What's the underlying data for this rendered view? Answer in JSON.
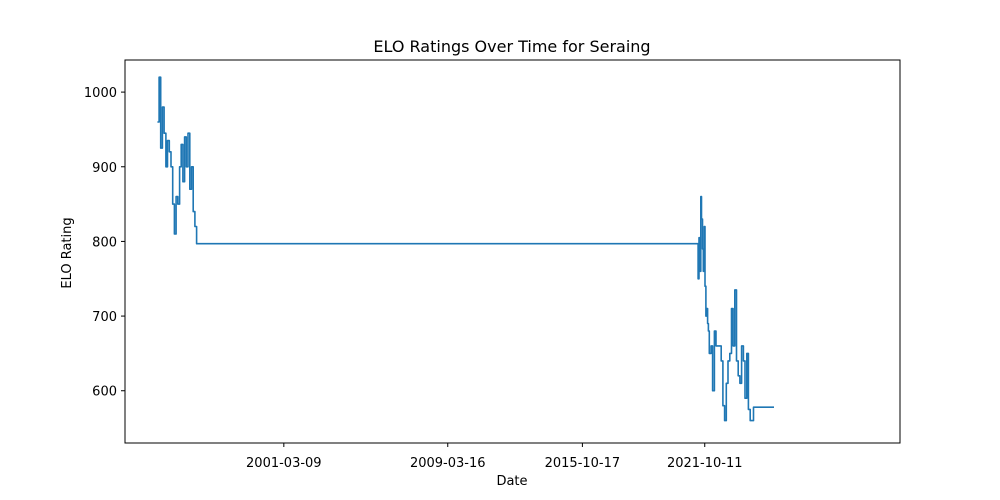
{
  "chart_data": {
    "type": "line",
    "title": "ELO Ratings Over Time for Seraing",
    "xlabel": "Date",
    "ylabel": "ELO Rating",
    "x_tick_labels": [
      "2001-03-09",
      "2009-03-16",
      "2015-10-17",
      "2021-10-11"
    ],
    "x_ticks": [
      "2001-03-09",
      "2009-03-16",
      "2015-10-17",
      "2021-10-11"
    ],
    "y_ticks": [
      600,
      700,
      800,
      900,
      1000
    ],
    "y_tick_labels": [
      "600",
      "700",
      "800",
      "900",
      "1000"
    ],
    "xlim": [
      "1993-06-01",
      "2031-05-01"
    ],
    "ylim": [
      530,
      1043
    ],
    "grid": false,
    "line_color": "#1f77b4",
    "series": [
      {
        "x": [
          "1995-01-01",
          "1995-02-01",
          "1995-03-01",
          "1995-04-01",
          "1995-05-01",
          "1995-06-01",
          "1995-07-01",
          "1995-08-01",
          "1995-09-01",
          "1995-10-01",
          "1995-11-01",
          "1995-12-01",
          "1996-01-01",
          "1996-02-01",
          "1996-03-01",
          "1996-04-01",
          "1996-05-01",
          "1996-06-01",
          "1996-07-01",
          "1996-08-01",
          "1996-09-01",
          "1996-10-01",
          "1996-11-01",
          "1996-12-01",
          "1997-01-01",
          "1997-02-01",
          "1997-03-01",
          "1997-04-01",
          "1997-05-01",
          "2021-06-01",
          "2021-06-15",
          "2021-07-01",
          "2021-07-15",
          "2021-08-01",
          "2021-08-15",
          "2021-09-01",
          "2021-09-15",
          "2021-10-01",
          "2021-10-15",
          "2021-11-01",
          "2021-11-15",
          "2021-12-01",
          "2021-12-15",
          "2022-01-01",
          "2022-02-01",
          "2022-03-01",
          "2022-04-01",
          "2022-05-01",
          "2022-06-01",
          "2022-07-01",
          "2022-08-01",
          "2022-09-01",
          "2022-10-01",
          "2022-11-01",
          "2022-12-01",
          "2023-01-01",
          "2023-02-01",
          "2023-03-01",
          "2023-04-01",
          "2023-05-01",
          "2023-06-01",
          "2023-07-01",
          "2023-08-01",
          "2023-09-01",
          "2023-10-01",
          "2023-11-01",
          "2023-12-01",
          "2024-01-01",
          "2024-03-01",
          "2025-03-01"
        ],
        "y": [
          960,
          1020,
          925,
          980,
          945,
          900,
          935,
          920,
          900,
          850,
          810,
          860,
          850,
          900,
          930,
          880,
          940,
          900,
          945,
          870,
          900,
          840,
          820,
          797,
          797,
          797,
          797,
          797,
          797,
          797,
          750,
          805,
          760,
          860,
          830,
          790,
          760,
          820,
          740,
          700,
          710,
          690,
          680,
          650,
          660,
          600,
          680,
          660,
          660,
          660,
          640,
          580,
          560,
          610,
          640,
          650,
          710,
          660,
          735,
          640,
          620,
          610,
          660,
          640,
          590,
          650,
          575,
          560,
          578,
          578
        ]
      }
    ]
  }
}
